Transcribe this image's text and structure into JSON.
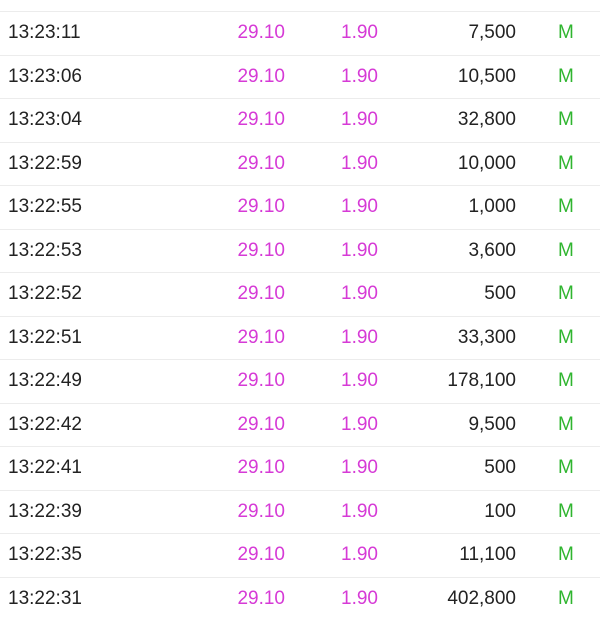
{
  "colors": {
    "price": "#d63ad6",
    "change": "#d63ad6",
    "flag": "#2fb52f",
    "text": "#222222"
  },
  "trades": [
    {
      "time": "13:23:11",
      "price": "29.10",
      "change": "1.90",
      "volume": "7,500",
      "flag": "M"
    },
    {
      "time": "13:23:06",
      "price": "29.10",
      "change": "1.90",
      "volume": "10,500",
      "flag": "M"
    },
    {
      "time": "13:23:04",
      "price": "29.10",
      "change": "1.90",
      "volume": "32,800",
      "flag": "M"
    },
    {
      "time": "13:22:59",
      "price": "29.10",
      "change": "1.90",
      "volume": "10,000",
      "flag": "M"
    },
    {
      "time": "13:22:55",
      "price": "29.10",
      "change": "1.90",
      "volume": "1,000",
      "flag": "M"
    },
    {
      "time": "13:22:53",
      "price": "29.10",
      "change": "1.90",
      "volume": "3,600",
      "flag": "M"
    },
    {
      "time": "13:22:52",
      "price": "29.10",
      "change": "1.90",
      "volume": "500",
      "flag": "M"
    },
    {
      "time": "13:22:51",
      "price": "29.10",
      "change": "1.90",
      "volume": "33,300",
      "flag": "M"
    },
    {
      "time": "13:22:49",
      "price": "29.10",
      "change": "1.90",
      "volume": "178,100",
      "flag": "M"
    },
    {
      "time": "13:22:42",
      "price": "29.10",
      "change": "1.90",
      "volume": "9,500",
      "flag": "M"
    },
    {
      "time": "13:22:41",
      "price": "29.10",
      "change": "1.90",
      "volume": "500",
      "flag": "M"
    },
    {
      "time": "13:22:39",
      "price": "29.10",
      "change": "1.90",
      "volume": "100",
      "flag": "M"
    },
    {
      "time": "13:22:35",
      "price": "29.10",
      "change": "1.90",
      "volume": "11,100",
      "flag": "M"
    },
    {
      "time": "13:22:31",
      "price": "29.10",
      "change": "1.90",
      "volume": "402,800",
      "flag": "M"
    }
  ]
}
